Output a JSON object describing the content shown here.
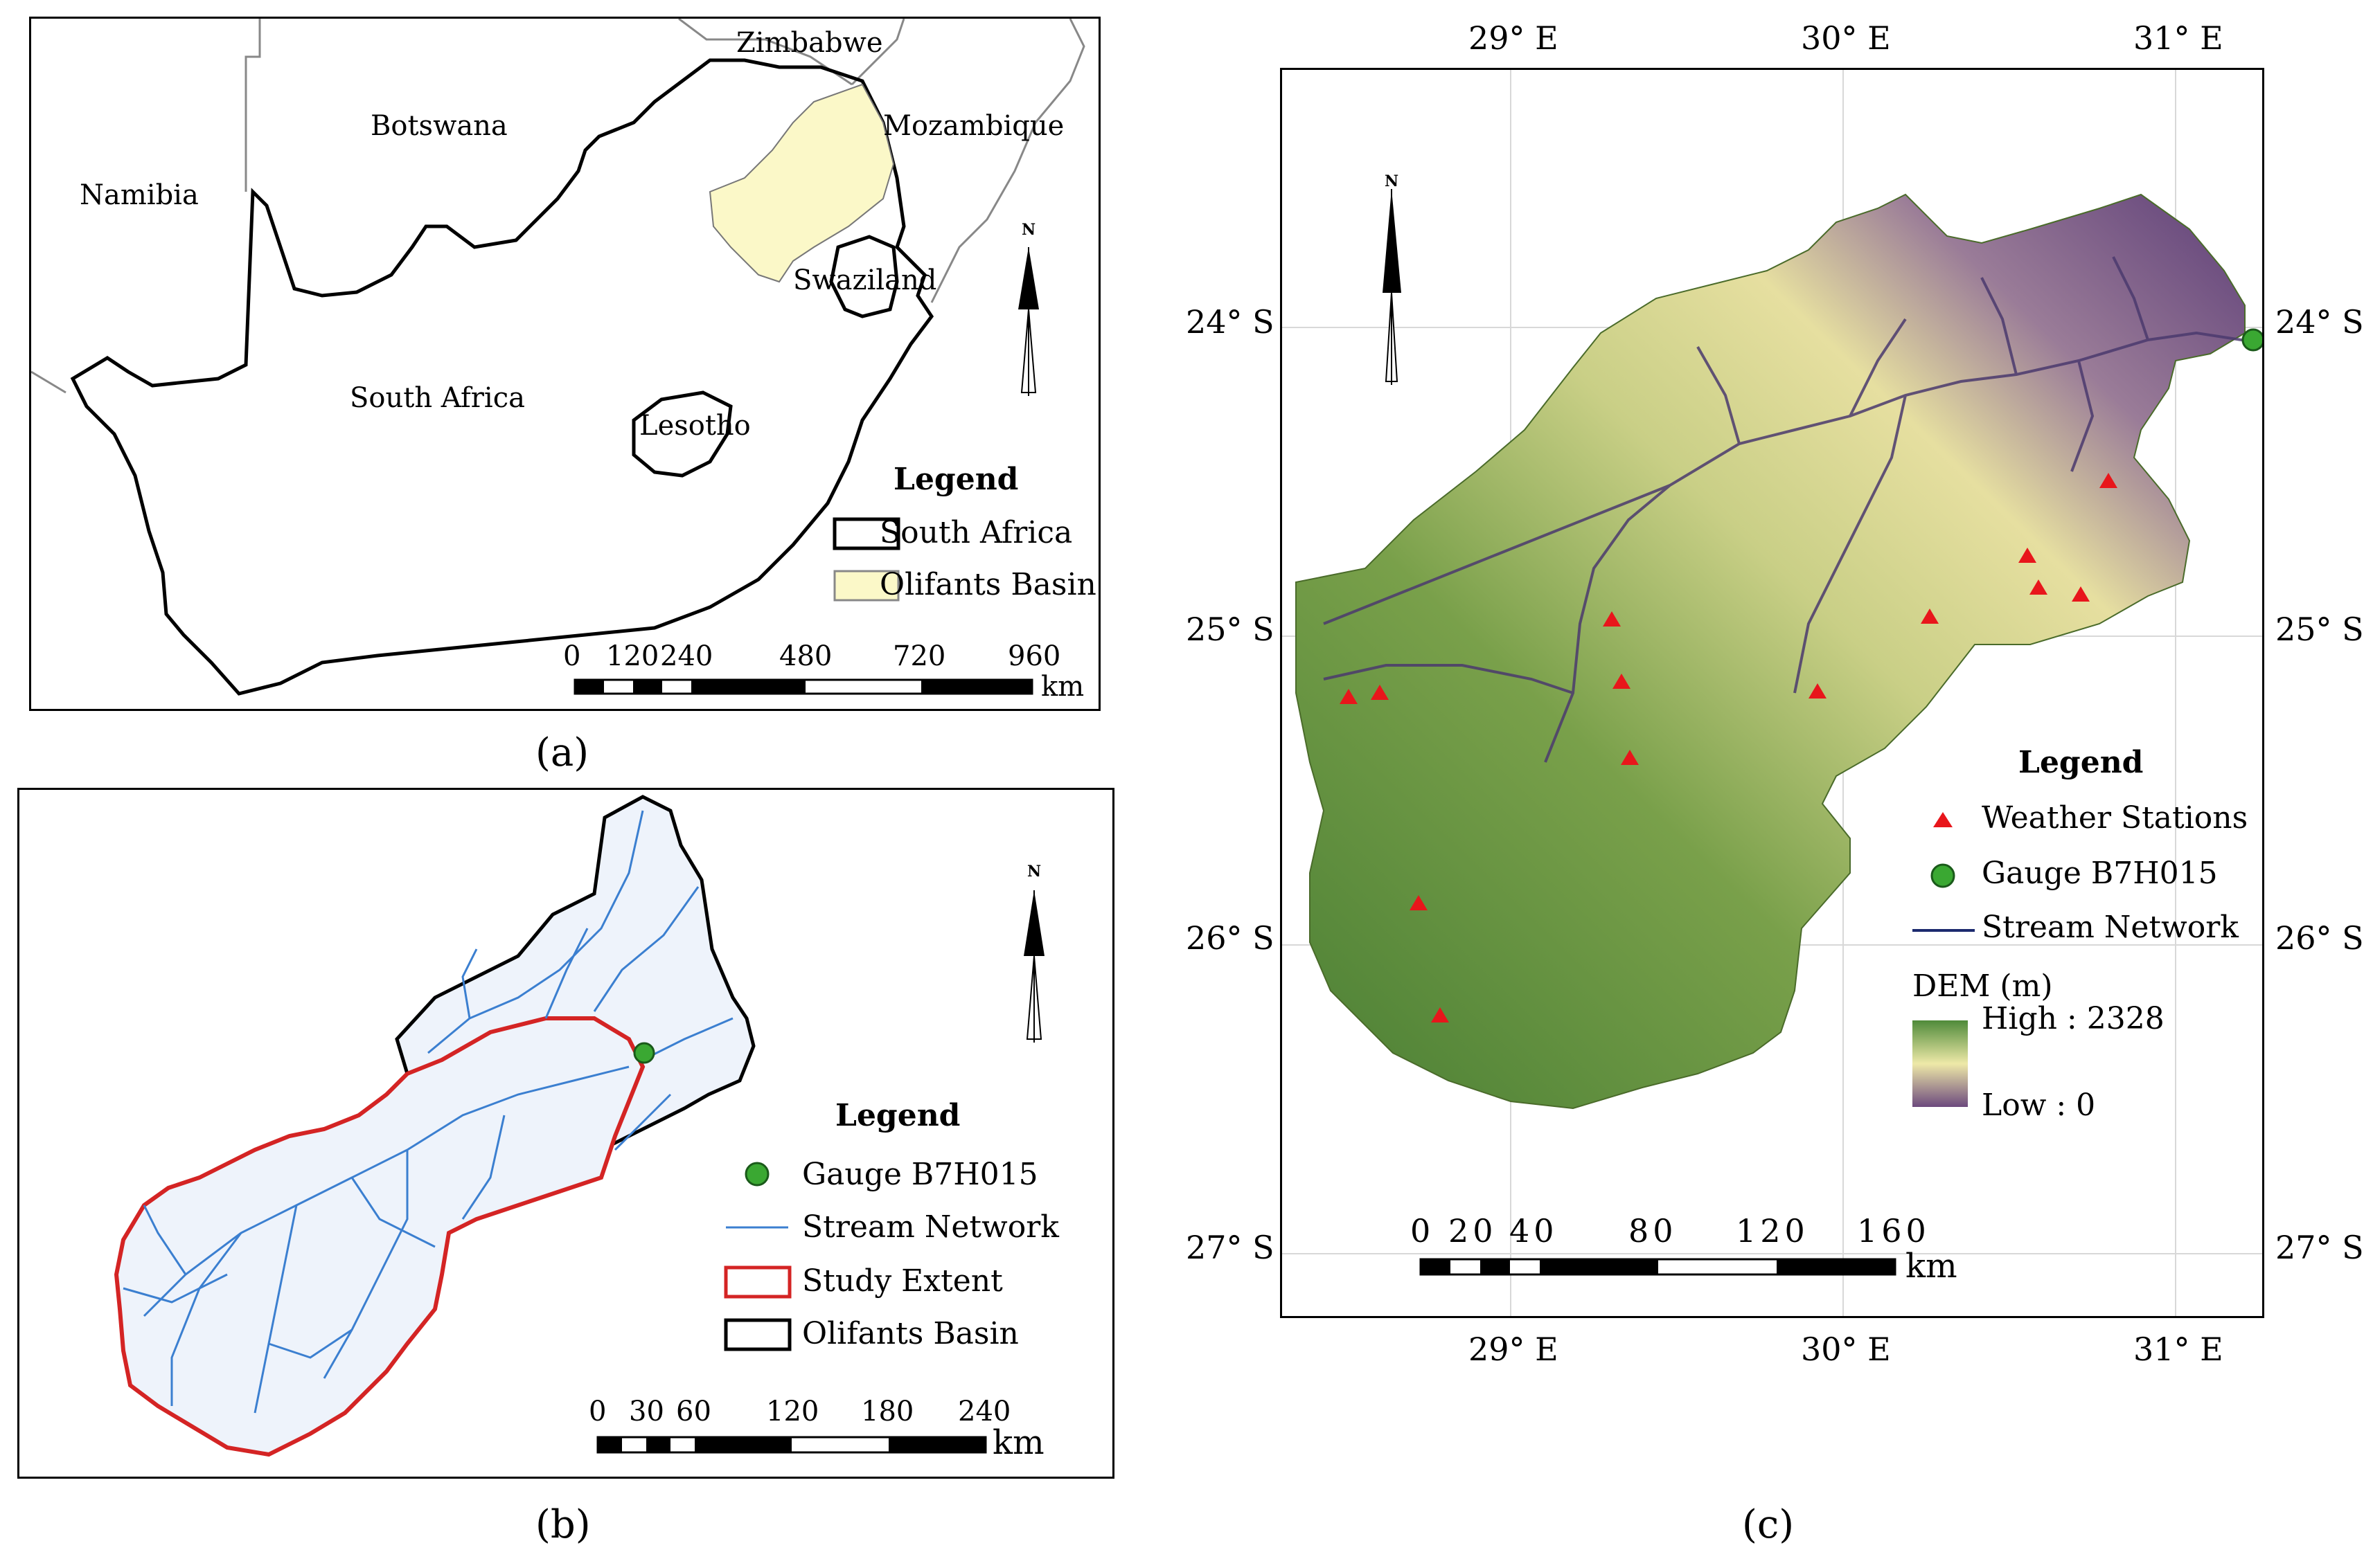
{
  "panel_a": {
    "countries": {
      "zimbabwe": "Zimbabwe",
      "botswana": "Botswana",
      "mozambique": "Mozambique",
      "namibia": "Namibia",
      "swaziland": "Swaziland",
      "south_africa": "South Africa",
      "lesotho": "Lesotho"
    },
    "legend": {
      "title": "Legend",
      "items": [
        "South Africa",
        "Olifants Basin"
      ]
    },
    "scale": {
      "ticks": [
        "0",
        "120",
        "240",
        "480",
        "720",
        "960"
      ],
      "unit": "km"
    },
    "north": "N",
    "caption": "(a)",
    "colors": {
      "basin_fill": "#fbf8c8"
    }
  },
  "panel_b": {
    "legend": {
      "title": "Legend",
      "items": [
        "Gauge B7H015",
        "Stream Network",
        "Study Extent",
        "Olifants Basin"
      ]
    },
    "scale": {
      "ticks": [
        "0",
        "30",
        "60",
        "120",
        "180",
        "240"
      ],
      "unit": "km"
    },
    "north": "N",
    "caption": "(b)",
    "colors": {
      "stream": "#3b7fd0",
      "study_extent": "#d42424",
      "gauge": "#3aa832"
    }
  },
  "panel_c": {
    "lon_ticks": [
      "29° E",
      "30° E",
      "31° E"
    ],
    "lat_ticks": [
      "24° S",
      "25° S",
      "26° S",
      "27° S"
    ],
    "legend": {
      "title": "Legend",
      "items": [
        "Weather Stations",
        "Gauge B7H015",
        "Stream Network"
      ],
      "dem_title": "DEM (m)",
      "dem_high": "High : 2328",
      "dem_low": "Low : 0"
    },
    "scale": {
      "ticks": [
        "0",
        "20",
        "40",
        "80",
        "120",
        "160"
      ],
      "unit": "km"
    },
    "north": "N",
    "caption": "(c)",
    "colors": {
      "station": "#e8161b",
      "gauge": "#3aa832",
      "stream": "#1c2a6e",
      "dem_high": "#4f8a3a",
      "dem_mid": "#eee9a8",
      "dem_low": "#6d4a7e"
    }
  }
}
